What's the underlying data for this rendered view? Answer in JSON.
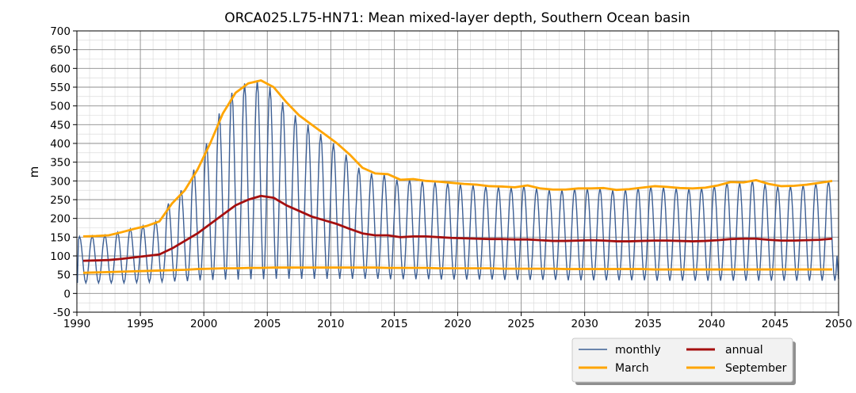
{
  "chart_data": {
    "type": "line",
    "title": "ORCA025.L75-HN71: Mean mixed-layer depth, Southern Ocean basin",
    "xlabel": "",
    "ylabel": "m",
    "xlim": [
      1990,
      2050
    ],
    "ylim": [
      -50,
      700
    ],
    "x_ticks": [
      1990,
      1995,
      2000,
      2005,
      2010,
      2015,
      2020,
      2025,
      2030,
      2035,
      2040,
      2045,
      2050
    ],
    "y_ticks": [
      -50,
      0,
      50,
      100,
      150,
      200,
      250,
      300,
      350,
      400,
      450,
      500,
      550,
      600,
      650,
      700
    ],
    "grid": true,
    "legend_position": "bottom-right, outside the plot",
    "x": [
      1990.5,
      1991.5,
      1992.5,
      1993.5,
      1994.5,
      1995.5,
      1996.5,
      1997.5,
      1998.5,
      1999.5,
      2000.5,
      2001.5,
      2002.5,
      2003.5,
      2004.5,
      2005.5,
      2006.5,
      2007.5,
      2008.5,
      2009.5,
      2010.5,
      2011.5,
      2012.5,
      2013.5,
      2014.5,
      2015.5,
      2016.5,
      2017.5,
      2018.5,
      2019.5,
      2020.5,
      2021.5,
      2022.5,
      2023.5,
      2024.5,
      2025.5,
      2026.5,
      2027.5,
      2028.5,
      2029.5,
      2030.5,
      2031.5,
      2032.5,
      2033.5,
      2034.5,
      2035.5,
      2036.5,
      2037.5,
      2038.5,
      2039.5,
      2040.5,
      2041.5,
      2042.5,
      2043.5,
      2044.5,
      2045.5,
      2046.5,
      2047.5,
      2048.5,
      2049.5
    ],
    "series": [
      {
        "name": "monthly",
        "color": "#3d5f94",
        "kind": "seasonal cycle, peaks near the March values and troughs near the September values",
        "first_value": 28,
        "last_value": 38
      },
      {
        "name": "annual",
        "color": "#a50f0f",
        "values": [
          87,
          88,
          89,
          92,
          96,
          100,
          104,
          120,
          140,
          160,
          185,
          210,
          235,
          250,
          260,
          255,
          235,
          220,
          205,
          195,
          185,
          172,
          160,
          155,
          155,
          150,
          152,
          152,
          150,
          148,
          147,
          146,
          145,
          145,
          144,
          144,
          142,
          140,
          140,
          141,
          142,
          141,
          139,
          139,
          140,
          141,
          141,
          140,
          139,
          140,
          142,
          145,
          146,
          146,
          143,
          141,
          141,
          142,
          143,
          146
        ]
      },
      {
        "name": "March",
        "color": "#ffa500",
        "values": [
          152,
          153,
          155,
          163,
          172,
          180,
          192,
          240,
          275,
          330,
          400,
          480,
          535,
          560,
          568,
          550,
          510,
          475,
          450,
          425,
          400,
          370,
          335,
          320,
          318,
          303,
          305,
          300,
          298,
          295,
          292,
          290,
          286,
          285,
          283,
          288,
          280,
          277,
          277,
          280,
          280,
          281,
          276,
          278,
          282,
          286,
          284,
          281,
          280,
          282,
          288,
          297,
          296,
          302,
          292,
          286,
          287,
          290,
          295,
          300
        ]
      },
      {
        "name": "September",
        "color": "#ffa500",
        "values": [
          55,
          56,
          57,
          58,
          59,
          60,
          61,
          62,
          63,
          65,
          66,
          67,
          67,
          68,
          68,
          69,
          69,
          69,
          69,
          69,
          69,
          69,
          69,
          69,
          68,
          68,
          68,
          68,
          67,
          67,
          67,
          67,
          67,
          66,
          66,
          66,
          66,
          66,
          65,
          65,
          65,
          65,
          65,
          65,
          65,
          64,
          64,
          64,
          64,
          64,
          64,
          64,
          64,
          64,
          64,
          64,
          64,
          64,
          64,
          64
        ]
      }
    ],
    "legend": [
      {
        "label": "monthly",
        "color": "#3d5f94",
        "width": 1.5
      },
      {
        "label": "March",
        "color": "#ffa500",
        "width": 3
      },
      {
        "label": "annual",
        "color": "#a50f0f",
        "width": 3
      },
      {
        "label": "September",
        "color": "#ffa500",
        "width": 3
      }
    ]
  }
}
